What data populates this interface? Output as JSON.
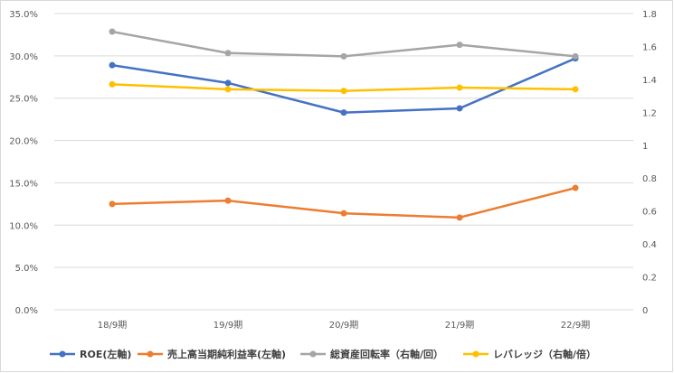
{
  "chart_data": {
    "type": "line",
    "categories": [
      "18/9期",
      "19/9期",
      "20/9期",
      "21/9期",
      "22/9期"
    ],
    "y_left": {
      "range": [
        0,
        0.35
      ],
      "ticks": [
        "0.0%",
        "5.0%",
        "10.0%",
        "15.0%",
        "20.0%",
        "25.0%",
        "30.0%",
        "35.0%"
      ]
    },
    "y_right": {
      "range": [
        0,
        1.8
      ],
      "ticks": [
        "0",
        "0.2",
        "0.4",
        "0.6",
        "0.8",
        "1",
        "1.2",
        "1.4",
        "1.6",
        "1.8"
      ]
    },
    "grid": true,
    "legend_position": "bottom",
    "series": [
      {
        "name": "ROE(左軸)",
        "axis": "left",
        "color": "#4472C4",
        "values": [
          0.289,
          0.268,
          0.233,
          0.238,
          0.297
        ]
      },
      {
        "name": "売上高当期純利益率(左軸)",
        "axis": "left",
        "color": "#ED7D31",
        "values": [
          0.125,
          0.129,
          0.114,
          0.109,
          0.144
        ]
      },
      {
        "name": "総資産回転率（右軸/回）",
        "axis": "right",
        "color": "#A5A5A5",
        "values": [
          1.69,
          1.56,
          1.54,
          1.61,
          1.54
        ]
      },
      {
        "name": "レバレッジ（右軸/倍）",
        "axis": "right",
        "color": "#FFC000",
        "values": [
          1.37,
          1.34,
          1.33,
          1.35,
          1.34
        ]
      }
    ]
  }
}
